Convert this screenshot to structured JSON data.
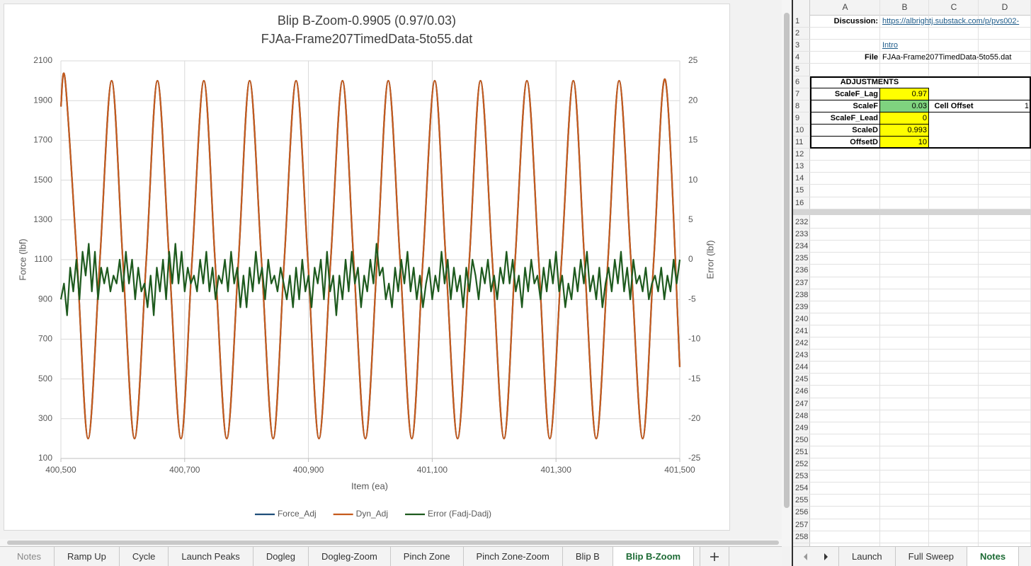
{
  "chart_data": {
    "type": "line",
    "title": "Blip B-Zoom-0.9905 (0.97/0.03)",
    "subtitle": "FJAa-Frame207TimedData-5to55.dat",
    "x_label": "Item (ea)",
    "y_label": "Force (lbf)",
    "y2_label": "Error (lbf)",
    "xlim": [
      400500,
      401500
    ],
    "xticks": [
      {
        "value": 400500,
        "label": "400,500"
      },
      {
        "value": 400700,
        "label": "400,700"
      },
      {
        "value": 400900,
        "label": "400,900"
      },
      {
        "value": 401100,
        "label": "401,100"
      },
      {
        "value": 401300,
        "label": "401,300"
      },
      {
        "value": 401500,
        "label": "401,500"
      }
    ],
    "ylim": [
      100,
      2100
    ],
    "yticks": [
      100,
      300,
      500,
      700,
      900,
      1100,
      1300,
      1500,
      1700,
      1900,
      2100
    ],
    "y2lim": [
      -25,
      25
    ],
    "y2ticks": [
      -25,
      -20,
      -15,
      -10,
      -5,
      0,
      5,
      10,
      15,
      20,
      25
    ],
    "grid": true,
    "legend": "bottom",
    "series": [
      {
        "name": "Force_Adj",
        "color": "#1f4e79",
        "smooth": true,
        "x": [
          400500,
          400507,
          400526,
          400544,
          400563,
          400582,
          400600,
          400619,
          400638,
          400656,
          400675,
          400694,
          400712,
          400731,
          400749,
          400768,
          400787,
          400805,
          400824,
          400843,
          400861,
          400880,
          400899,
          400917,
          400936,
          400955,
          400973,
          400992,
          401011,
          401029,
          401048,
          401067,
          401085,
          401104,
          401122,
          401141,
          401160,
          401178,
          401197,
          401216,
          401234,
          401253,
          401272,
          401290,
          401309,
          401328,
          401346,
          401365,
          401384,
          401402,
          401421,
          401440,
          401458,
          401477,
          401500
        ],
        "values": [
          1870,
          2000,
          1100,
          200,
          1100,
          2000,
          1100,
          200,
          1100,
          2000,
          1100,
          200,
          1100,
          2000,
          1100,
          200,
          1100,
          2000,
          1100,
          200,
          1100,
          2000,
          1100,
          200,
          1100,
          2000,
          1100,
          200,
          1100,
          2000,
          1100,
          200,
          1100,
          2000,
          1100,
          200,
          1100,
          2000,
          1100,
          200,
          1100,
          2000,
          1100,
          200,
          1100,
          2000,
          1100,
          200,
          1100,
          2000,
          1100,
          200,
          1100,
          2000,
          560
        ]
      },
      {
        "name": "Dyn_Adj",
        "color": "#c55a1c",
        "smooth": true,
        "x": [
          400500,
          400507,
          400526,
          400544,
          400563,
          400582,
          400600,
          400619,
          400638,
          400656,
          400675,
          400694,
          400712,
          400731,
          400749,
          400768,
          400787,
          400805,
          400824,
          400843,
          400861,
          400880,
          400899,
          400917,
          400936,
          400955,
          400973,
          400992,
          401011,
          401029,
          401048,
          401067,
          401085,
          401104,
          401122,
          401141,
          401160,
          401178,
          401197,
          401216,
          401234,
          401253,
          401272,
          401290,
          401309,
          401328,
          401346,
          401365,
          401384,
          401402,
          401421,
          401440,
          401458,
          401477,
          401500
        ],
        "values": [
          1870,
          2000,
          1100,
          200,
          1100,
          2000,
          1100,
          200,
          1100,
          2000,
          1100,
          200,
          1100,
          2000,
          1100,
          200,
          1100,
          2000,
          1100,
          200,
          1100,
          2000,
          1100,
          200,
          1100,
          2000,
          1100,
          200,
          1100,
          2000,
          1100,
          200,
          1100,
          2000,
          1100,
          200,
          1100,
          2000,
          1100,
          200,
          1100,
          2000,
          1100,
          200,
          1100,
          2000,
          1100,
          200,
          1100,
          2000,
          1100,
          200,
          1100,
          2000,
          560
        ]
      },
      {
        "name": "Error (Fadj-Dadj)",
        "color": "#1e5a1e",
        "smooth": false,
        "axis": "y2",
        "x": [
          400500,
          400505,
          400510,
          400515,
          400520,
          400525,
          400530,
          400535,
          400540,
          400545,
          400550,
          400555,
          400560,
          400565,
          400570,
          400575,
          400580,
          400585,
          400590,
          400595,
          400600,
          400605,
          400610,
          400615,
          400620,
          400625,
          400630,
          400635,
          400640,
          400645,
          400650,
          400655,
          400660,
          400665,
          400670,
          400675,
          400680,
          400685,
          400690,
          400695,
          400700,
          400705,
          400710,
          400715,
          400720,
          400725,
          400730,
          400735,
          400740,
          400745,
          400750,
          400755,
          400760,
          400765,
          400770,
          400775,
          400780,
          400785,
          400790,
          400795,
          400800,
          400805,
          400810,
          400815,
          400820,
          400825,
          400830,
          400835,
          400840,
          400845,
          400850,
          400855,
          400860,
          400865,
          400870,
          400875,
          400880,
          400885,
          400890,
          400895,
          400900,
          400905,
          400910,
          400915,
          400920,
          400925,
          400930,
          400935,
          400940,
          400945,
          400950,
          400955,
          400960,
          400965,
          400970,
          400975,
          400980,
          400985,
          400990,
          400995,
          401000,
          401005,
          401010,
          401015,
          401020,
          401025,
          401030,
          401035,
          401040,
          401045,
          401050,
          401055,
          401060,
          401065,
          401070,
          401075,
          401080,
          401085,
          401090,
          401095,
          401100,
          401105,
          401110,
          401115,
          401120,
          401125,
          401130,
          401135,
          401140,
          401145,
          401150,
          401155,
          401160,
          401165,
          401170,
          401175,
          401180,
          401185,
          401190,
          401195,
          401200,
          401205,
          401210,
          401215,
          401220,
          401225,
          401230,
          401235,
          401240,
          401245,
          401250,
          401255,
          401260,
          401265,
          401270,
          401275,
          401280,
          401285,
          401290,
          401295,
          401300,
          401305,
          401310,
          401315,
          401320,
          401325,
          401330,
          401335,
          401340,
          401345,
          401350,
          401355,
          401360,
          401365,
          401370,
          401375,
          401380,
          401385,
          401390,
          401395,
          401400,
          401405,
          401410,
          401415,
          401420,
          401425,
          401430,
          401435,
          401440,
          401445,
          401450,
          401455,
          401460,
          401465,
          401470,
          401475,
          401480,
          401485,
          401490,
          401495,
          401500
        ],
        "values": [
          -5,
          -3,
          -7,
          -1,
          -4,
          0,
          -5,
          1,
          -2,
          2,
          -4,
          1,
          -5,
          -1,
          -3,
          -1,
          -4,
          -2,
          -3,
          0,
          -4,
          1,
          -3,
          0,
          -5,
          -1,
          -4,
          -3,
          -6,
          -2,
          -7,
          -1,
          -4,
          0,
          -5,
          1,
          -3,
          2,
          -3,
          1,
          -4,
          -1,
          -3,
          -2,
          -4,
          0,
          -3,
          1,
          -4,
          -1,
          -5,
          -2,
          -3,
          0,
          -4,
          1,
          -3,
          -1,
          -6,
          -2,
          -6,
          -1,
          -4,
          1,
          -3,
          -1,
          -5,
          0,
          -3,
          -2,
          -4,
          -1,
          -3,
          -5,
          -2,
          -6,
          -1,
          -5,
          0,
          -4,
          -2,
          -6,
          -1,
          -3,
          0,
          -5,
          1,
          -4,
          -2,
          -7,
          -2,
          -5,
          0,
          -4,
          1,
          -3,
          -1,
          -6,
          -2,
          -4,
          0,
          -3,
          2,
          -2,
          -1,
          -5,
          -3,
          -6,
          -1,
          -4,
          0,
          -3,
          1,
          -4,
          -1,
          -5,
          -2,
          -6,
          -3,
          -1,
          -5,
          -2,
          -4,
          1,
          -3,
          0,
          -5,
          -1,
          -4,
          -2,
          -6,
          -1,
          -4,
          0,
          -2,
          -5,
          -1,
          -3,
          0,
          -4,
          -2,
          -5,
          -1,
          -3,
          1,
          -3,
          0,
          -4,
          -2,
          -6,
          -1,
          -4,
          0,
          -3,
          -2,
          -5,
          -1,
          -4,
          0,
          -3,
          1,
          -4,
          -2,
          -6,
          -3,
          -5,
          -1,
          -4,
          0,
          -3,
          1,
          -4,
          -2,
          -5,
          -1,
          -6,
          -3,
          -1,
          -4,
          0,
          -3,
          1,
          -4,
          -1,
          -5,
          0,
          -3,
          -2,
          -4,
          -1,
          -5,
          -3,
          -2,
          -4,
          -1,
          -5,
          -2,
          -4,
          0,
          -3,
          0
        ]
      }
    ]
  },
  "sheet": {
    "column_headers": [
      "A",
      "B",
      "C",
      "D"
    ],
    "row_numbers": [
      1,
      2,
      3,
      4,
      5,
      6,
      7,
      8,
      9,
      10,
      11,
      12,
      13,
      14,
      15,
      16
    ],
    "row_numbers_lower": [
      232,
      233,
      234,
      235,
      236,
      237,
      238,
      239,
      240,
      241,
      242,
      243,
      244,
      245,
      246,
      247,
      248,
      249,
      250,
      251,
      252,
      253,
      254,
      255,
      256,
      257,
      258
    ],
    "discussion_label": "Discussion:",
    "discussion_link": "https://albrightj.substack.com/p/pvs002-",
    "intro_link": "Intro",
    "file_label": "File",
    "file_name": "FJAa-Frame207TimedData-5to55.dat",
    "adjustments": "ADJUSTMENTS",
    "params": [
      {
        "name": "ScaleF_Lag",
        "value": 0.97,
        "color": "#ffff00"
      },
      {
        "name": "ScaleF",
        "value": 0.03,
        "color": "#7fd37f"
      },
      {
        "name": "ScaleF_Lead",
        "value": 0,
        "color": "#ffff00"
      },
      {
        "name": "ScaleD",
        "value": 0.993,
        "color": "#ffff00"
      },
      {
        "name": "OffsetD",
        "value": 10,
        "color": "#ffff00"
      }
    ],
    "cell_offset_label": "Cell Offset",
    "cell_offset_value": 1
  },
  "tabs": {
    "left": [
      "Notes",
      "Ramp Up",
      "Cycle",
      "Launch Peaks",
      "Dogleg",
      "Dogleg-Zoom",
      "Pinch Zone",
      "Pinch Zone-Zoom",
      "Blip B",
      "Blip B-Zoom"
    ],
    "left_active": 9,
    "right": [
      "Launch",
      "Full Sweep",
      "Notes"
    ],
    "right_active": 2
  }
}
